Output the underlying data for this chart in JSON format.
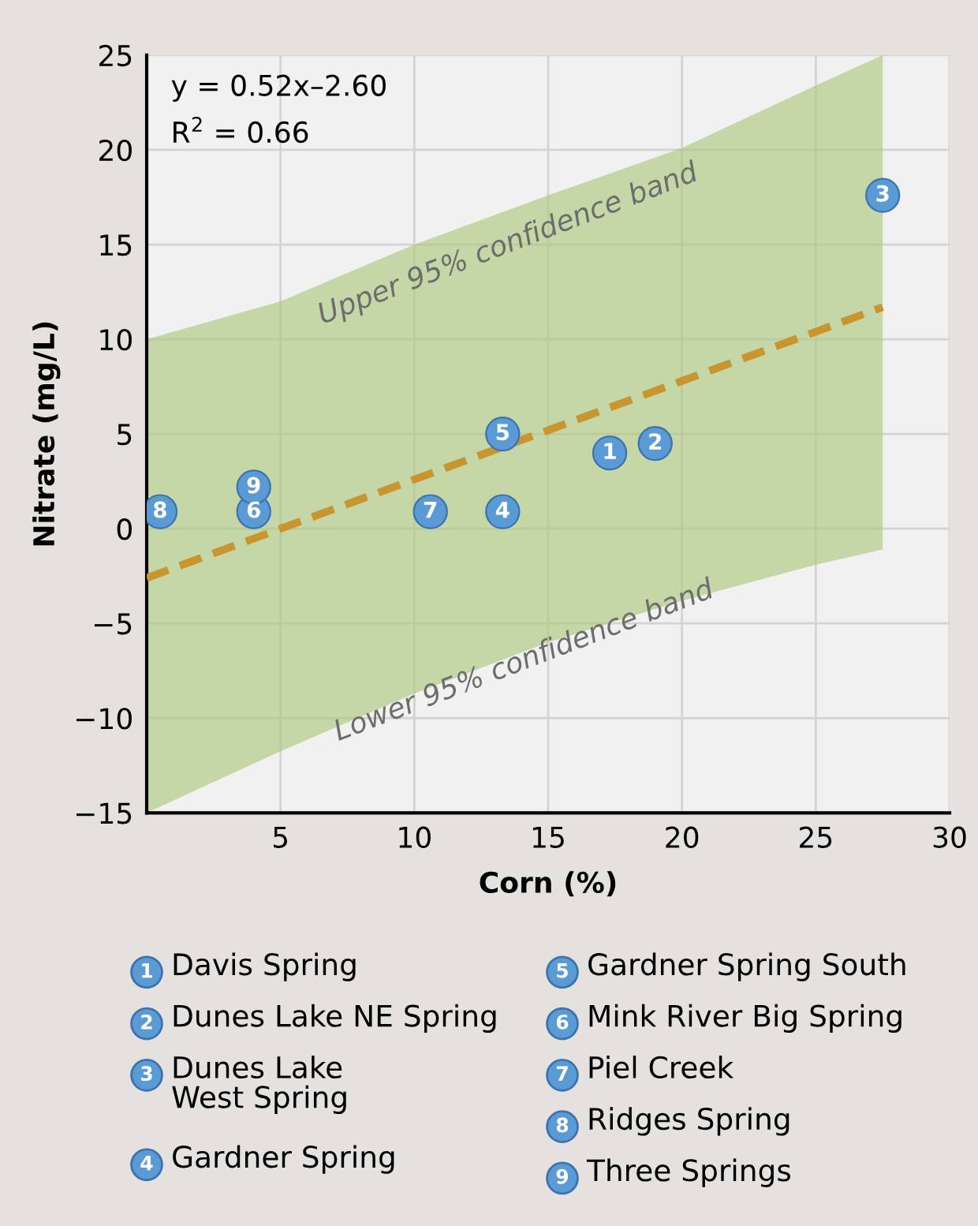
{
  "chart_data": {
    "type": "scatter",
    "xlabel": "Corn (%)",
    "ylabel": "Nitrate (mg/L)",
    "xlim": [
      0,
      30
    ],
    "ylim": [
      -15,
      25
    ],
    "xticks": [
      5,
      10,
      15,
      20,
      25,
      30
    ],
    "yticks": [
      {
        "value": -15,
        "label": "−15"
      },
      {
        "value": -10,
        "label": "−10"
      },
      {
        "value": -5,
        "label": "−5"
      },
      0,
      5,
      10,
      15,
      20,
      25
    ],
    "grid": true,
    "legend": "bottom",
    "marker": "circle",
    "series": [
      {
        "name": "Davis Spring",
        "color": "#5b9bd5",
        "x": [
          17.3
        ],
        "values": [
          4.0
        ]
      },
      {
        "name": "Dunes Lake NE Spring",
        "color": "#5b9bd5",
        "x": [
          19.0
        ],
        "values": [
          4.5
        ]
      },
      {
        "name": "Dunes Lake\nWest Spring",
        "color": "#5b9bd5",
        "x": [
          27.5
        ],
        "values": [
          17.6
        ]
      },
      {
        "name": "Gardner Spring",
        "color": "#5b9bd5",
        "x": [
          13.3
        ],
        "values": [
          0.9
        ]
      },
      {
        "name": "Gardner Spring South",
        "color": "#5b9bd5",
        "x": [
          13.3
        ],
        "values": [
          5.0
        ]
      },
      {
        "name": "Mink River Big Spring",
        "color": "#5b9bd5",
        "x": [
          4.0
        ],
        "values": [
          0.9
        ]
      },
      {
        "name": "Piel Creek",
        "color": "#5b9bd5",
        "x": [
          10.6
        ],
        "values": [
          0.9
        ]
      },
      {
        "name": "Ridges Spring",
        "color": "#5b9bd5",
        "x": [
          0.5
        ],
        "values": [
          0.9
        ]
      },
      {
        "name": "Three Springs",
        "color": "#5b9bd5",
        "x": [
          4.0
        ],
        "values": [
          2.2
        ]
      },
      {
        "type": "line",
        "color": "#c8952e",
        "line_style": "dashed",
        "marker": "none",
        "x": [
          0,
          5,
          10,
          15,
          20,
          25,
          27.5
        ],
        "values": [
          -2.6,
          0,
          2.6,
          5.2,
          7.8,
          10.4,
          11.7
        ],
        "lower": [
          -15,
          -11.75,
          -8.7,
          -6.0,
          -3.8,
          -1.9,
          -1.1
        ],
        "upper": [
          10,
          12.0,
          15.0,
          17.6,
          20.1,
          23.4,
          25
        ]
      }
    ],
    "annotations": [
      "y = 0.52x–2.60",
      "R$^{2}$ = 0.66",
      "Upper 95% confidence band",
      "Lower 95% confidence band",
      {
        "text": "1",
        "x": 17.3,
        "y": 4.0
      },
      {
        "text": "2",
        "x": 19.0,
        "y": 4.5
      },
      {
        "text": "3",
        "x": 27.5,
        "y": 17.6
      },
      {
        "text": "4",
        "x": 13.3,
        "y": 0.9
      },
      {
        "text": "5",
        "x": 13.3,
        "y": 5.0
      },
      {
        "text": "6",
        "x": 4.0,
        "y": 0.9
      },
      {
        "text": "7",
        "x": 10.6,
        "y": 0.9
      },
      {
        "text": "8",
        "x": 0.5,
        "y": 0.9
      },
      {
        "text": "9",
        "x": 4.0,
        "y": 2.2
      }
    ]
  }
}
